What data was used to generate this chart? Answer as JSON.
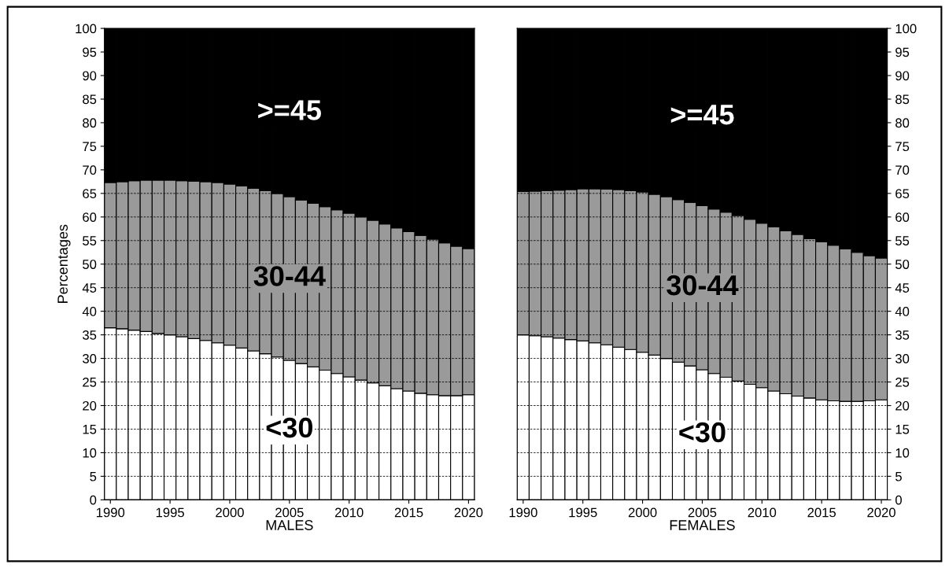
{
  "chart_data": [
    {
      "type": "bar",
      "stacked": true,
      "xlabel": "MALES",
      "ylabel": "Percentages",
      "x": [
        1990,
        1991,
        1992,
        1993,
        1994,
        1995,
        1996,
        1997,
        1998,
        1999,
        2000,
        2001,
        2002,
        2003,
        2004,
        2005,
        2006,
        2007,
        2008,
        2009,
        2010,
        2011,
        2012,
        2013,
        2014,
        2015,
        2016,
        2017,
        2018,
        2019,
        2020
      ],
      "series": [
        {
          "name": "<30",
          "color": "#ffffff",
          "values": [
            36.5,
            36.3,
            36,
            35.7,
            35.3,
            35,
            34.6,
            34.2,
            33.8,
            33.3,
            32.8,
            32.2,
            31.6,
            31,
            30.3,
            29.6,
            28.9,
            28.2,
            27.5,
            26.8,
            26.1,
            25.4,
            24.8,
            24.2,
            23.6,
            23.1,
            22.6,
            22.3,
            22.1,
            22.1,
            22.3
          ]
        },
        {
          "name": "30-44",
          "color": "#9a9a9a",
          "values": [
            30.8,
            31.2,
            31.7,
            32.1,
            32.5,
            32.8,
            33.1,
            33.4,
            33.7,
            34.0,
            34.2,
            34.4,
            34.5,
            34.6,
            34.7,
            34.7,
            34.7,
            34.7,
            34.7,
            34.7,
            34.7,
            34.6,
            34.5,
            34.3,
            34.1,
            33.8,
            33.5,
            33.0,
            32.4,
            31.7,
            31.0
          ]
        },
        {
          "name": ">=45",
          "color": "#000000",
          "values": [
            32.7,
            32.5,
            32.3,
            32.2,
            32.2,
            32.2,
            32.3,
            32.4,
            32.5,
            32.7,
            33,
            33.4,
            33.9,
            34.4,
            35,
            35.7,
            36.4,
            37.1,
            37.8,
            38.5,
            39.2,
            40,
            40.7,
            41.5,
            42.3,
            43.1,
            43.9,
            44.7,
            45.5,
            46.2,
            46.7
          ]
        }
      ],
      "xlim": [
        1989.5,
        2020.5
      ],
      "xticks": [
        1990,
        1995,
        2000,
        2005,
        2010,
        2015,
        2020
      ],
      "ylim": [
        0,
        100
      ],
      "yticks": [
        0,
        5,
        10,
        15,
        20,
        25,
        30,
        35,
        40,
        45,
        50,
        55,
        60,
        65,
        70,
        75,
        80,
        85,
        90,
        95,
        100
      ],
      "grid": "y"
    },
    {
      "type": "bar",
      "stacked": true,
      "xlabel": "FEMALES",
      "x": [
        1990,
        1991,
        1992,
        1993,
        1994,
        1995,
        1996,
        1997,
        1998,
        1999,
        2000,
        2001,
        2002,
        2003,
        2004,
        2005,
        2006,
        2007,
        2008,
        2009,
        2010,
        2011,
        2012,
        2013,
        2014,
        2015,
        2016,
        2017,
        2018,
        2019,
        2020
      ],
      "series": [
        {
          "name": "<30",
          "color": "#ffffff",
          "values": [
            35,
            34.8,
            34.6,
            34.3,
            34,
            33.7,
            33.3,
            32.9,
            32.4,
            31.9,
            31.3,
            30.7,
            30,
            29.2,
            28.4,
            27.6,
            26.8,
            26,
            25.2,
            24.5,
            23.8,
            23.1,
            22.5,
            22,
            21.6,
            21.2,
            21,
            20.9,
            20.9,
            21,
            21.2
          ]
        },
        {
          "name": "30-44",
          "color": "#9a9a9a",
          "values": [
            30.4,
            30.7,
            31,
            31.4,
            31.8,
            32.3,
            32.7,
            33,
            33.4,
            33.7,
            34,
            34.1,
            34.3,
            34.5,
            34.7,
            34.8,
            34.9,
            35,
            35.1,
            35,
            34.9,
            34.8,
            34.6,
            34.3,
            33.8,
            33.5,
            33,
            32.3,
            31.6,
            30.8,
            30.1
          ]
        },
        {
          "name": ">=45",
          "color": "#000000",
          "values": [
            34.6,
            34.5,
            34.4,
            34.3,
            34.2,
            34,
            34,
            34.1,
            34.2,
            34.4,
            34.7,
            35.2,
            35.7,
            36.3,
            36.9,
            37.6,
            38.3,
            39,
            39.7,
            40.5,
            41.3,
            42.1,
            42.9,
            43.7,
            44.6,
            45.3,
            46,
            46.8,
            47.5,
            48.2,
            48.7
          ]
        }
      ],
      "xlim": [
        1989.5,
        2020.5
      ],
      "xticks": [
        1990,
        1995,
        2000,
        2005,
        2010,
        2015,
        2020
      ],
      "ylim": [
        0,
        100
      ],
      "yticks": [
        0,
        5,
        10,
        15,
        20,
        25,
        30,
        35,
        40,
        45,
        50,
        55,
        60,
        65,
        70,
        75,
        80,
        85,
        90,
        95,
        100
      ],
      "grid": "y"
    }
  ]
}
